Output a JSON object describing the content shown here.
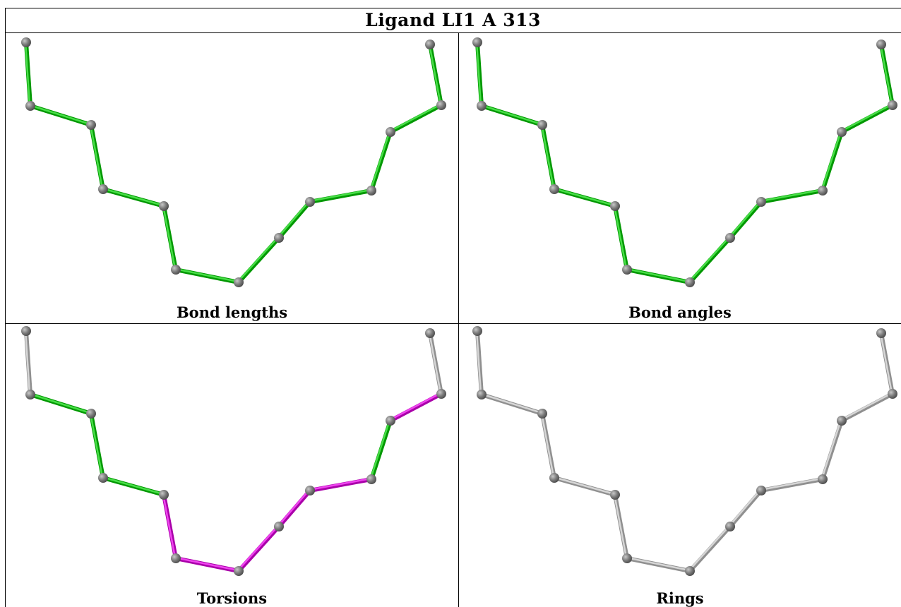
{
  "title": "Ligand LI1 A 313",
  "colors": {
    "ok": "#2ec52e",
    "outlier": "#d62bd6",
    "none": "#bdbdbd",
    "atom": "#7a7a7a"
  },
  "panels": [
    {
      "caption": "Bond lengths",
      "bond_status": [
        "ok",
        "ok",
        "ok",
        "ok",
        "ok",
        "ok",
        "ok",
        "ok",
        "ok",
        "ok",
        "ok",
        "ok",
        "ok",
        "ok"
      ]
    },
    {
      "caption": "Bond angles",
      "bond_status": [
        "ok",
        "ok",
        "ok",
        "ok",
        "ok",
        "ok",
        "ok",
        "ok",
        "ok",
        "ok",
        "ok",
        "ok",
        "ok",
        "ok"
      ]
    },
    {
      "caption": "Torsions",
      "bond_status": [
        "none",
        "ok",
        "ok",
        "ok",
        "outlier",
        "outlier",
        "outlier",
        "outlier",
        "outlier",
        "ok",
        "outlier",
        "none",
        "none",
        "none"
      ]
    },
    {
      "caption": "Rings",
      "bond_status": [
        "none",
        "none",
        "none",
        "none",
        "none",
        "none",
        "none",
        "none",
        "none",
        "none",
        "none",
        "none",
        "none",
        "none"
      ]
    }
  ]
}
